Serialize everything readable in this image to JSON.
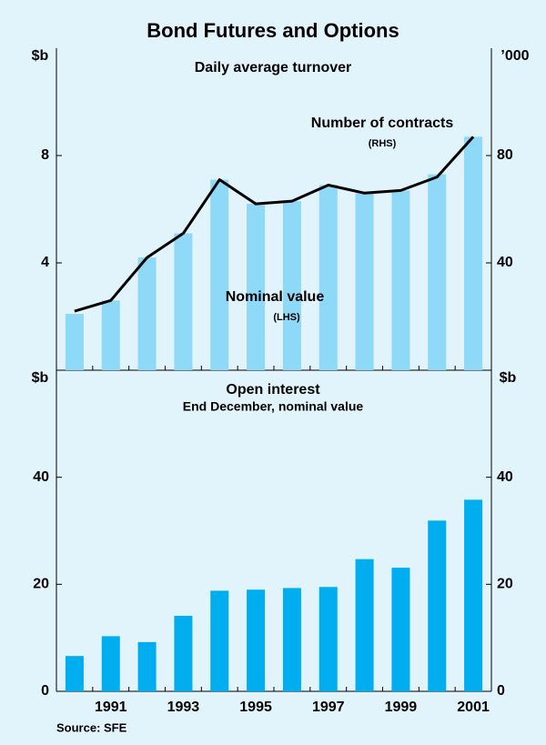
{
  "title": "Bond Futures and Options",
  "source": "Source: SFE",
  "chart_data": [
    {
      "type": "bar-line",
      "subtitle": "Daily average turnover",
      "y_label": "$b",
      "y2_label": "’000",
      "categories": [
        null,
        "1991",
        null,
        "1993",
        null,
        "1995",
        null,
        "1997",
        null,
        "1999",
        null,
        "2001"
      ],
      "ylim": [
        0,
        12
      ],
      "yticks": [
        4,
        8
      ],
      "y2lim": [
        0,
        120
      ],
      "y2ticks": [
        40,
        80
      ],
      "series": [
        {
          "name": "Nominal value",
          "note": "(LHS)",
          "type": "bar",
          "color": "#8ed8f8",
          "values": [
            2.1,
            2.6,
            4.2,
            5.1,
            7.1,
            6.2,
            6.3,
            6.9,
            6.6,
            6.7,
            7.3,
            8.7
          ]
        },
        {
          "name": "Number of contracts",
          "note": "(RHS)",
          "type": "line",
          "axis": "y2",
          "color": "#000000",
          "values": [
            22,
            26,
            42,
            51,
            71,
            62,
            63,
            69,
            66,
            67,
            72,
            87
          ]
        }
      ]
    },
    {
      "type": "bar",
      "subtitle": "Open interest",
      "subtitle2": "End December, nominal value",
      "y_label": "$b",
      "y2_label": "$b",
      "categories": [
        null,
        "1991",
        null,
        "1993",
        null,
        "1995",
        null,
        "1997",
        null,
        "1999",
        null,
        "2001"
      ],
      "ylim": [
        0,
        60
      ],
      "yticks": [
        0,
        20,
        40
      ],
      "y2lim": [
        0,
        60
      ],
      "y2ticks": [
        0,
        20,
        40
      ],
      "color": "#00aeef",
      "values": [
        6.6,
        10.3,
        9.2,
        14.1,
        18.8,
        19.0,
        19.3,
        19.5,
        24.7,
        23.1,
        31.9,
        35.8
      ]
    }
  ]
}
